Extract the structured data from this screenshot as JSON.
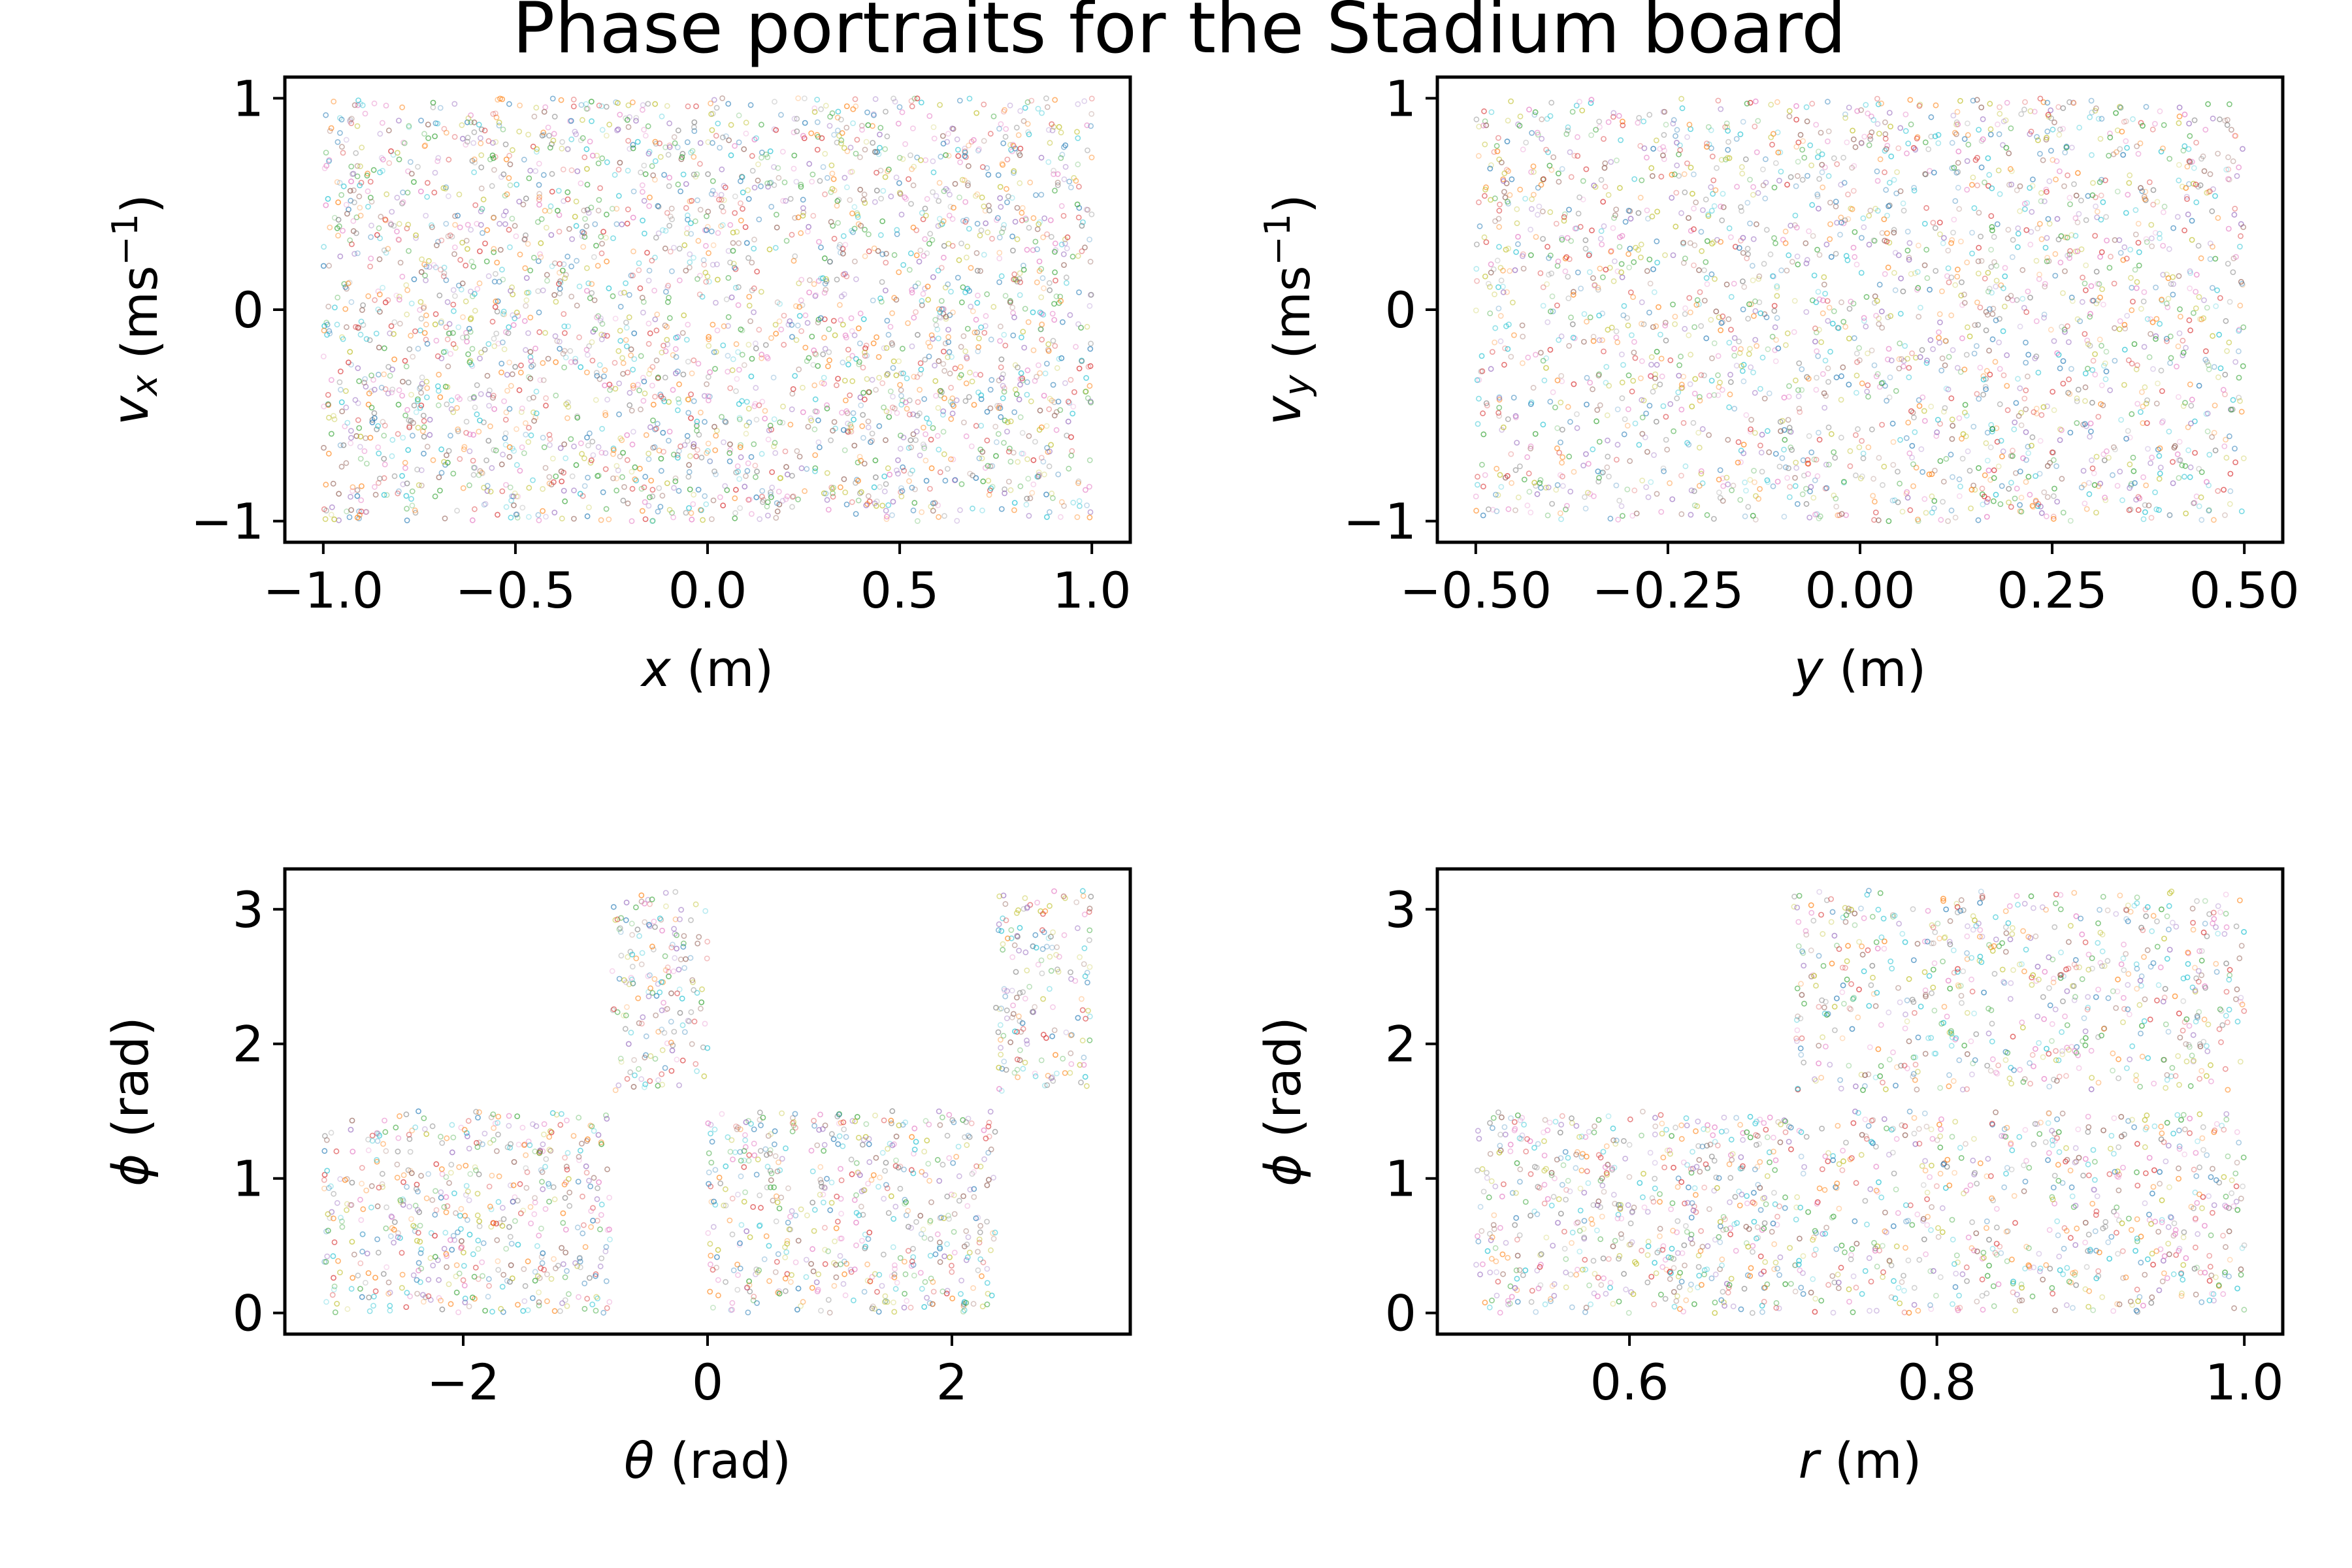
{
  "title": "Phase portraits for the Stadium board",
  "chart_data": [
    {
      "type": "scatter",
      "id": "x-vx",
      "xlabel_main": "x",
      "xlabel_unit": " (m)",
      "ylabel_main": "v",
      "ylabel_sub": "x",
      "ylabel_unit_pre": " (ms",
      "ylabel_sup": "−1",
      "ylabel_unit_post": ")",
      "xlim": [
        -1.1,
        1.1
      ],
      "ylim": [
        -1.1,
        1.1
      ],
      "xticks": [
        -1.0,
        -0.5,
        0.0,
        0.5,
        1.0
      ],
      "xtick_labels": [
        "−1.0",
        "−0.5",
        "0.0",
        "0.5",
        "1.0"
      ],
      "yticks": [
        -1,
        0,
        1
      ],
      "ytick_labels": [
        "−1",
        "0",
        "1"
      ],
      "regions": [
        {
          "x": [
            -1.0,
            1.0
          ],
          "y": [
            -1.0,
            1.0
          ],
          "density": 1.0
        }
      ],
      "gaps": [
        {
          "x": [
            -0.5,
            0.5
          ],
          "y": [
            -0.012,
            0.012
          ]
        }
      ]
    },
    {
      "type": "scatter",
      "id": "y-vy",
      "xlabel_main": "y",
      "xlabel_unit": " (m)",
      "ylabel_main": "v",
      "ylabel_sub": "y",
      "ylabel_unit_pre": " (ms",
      "ylabel_sup": "−1",
      "ylabel_unit_post": ")",
      "xlim": [
        -0.55,
        0.55
      ],
      "ylim": [
        -1.1,
        1.1
      ],
      "xticks": [
        -0.5,
        -0.25,
        0.0,
        0.25,
        0.5
      ],
      "xtick_labels": [
        "−0.50",
        "−0.25",
        "0.00",
        "0.25",
        "0.50"
      ],
      "yticks": [
        -1,
        0,
        1
      ],
      "ytick_labels": [
        "−1",
        "0",
        "1"
      ],
      "regions": [
        {
          "x": [
            -0.5,
            0.5
          ],
          "y": [
            -1.0,
            1.0
          ],
          "density": 0.8
        }
      ],
      "gaps": []
    },
    {
      "type": "scatter",
      "id": "theta-phi",
      "xlabel_main": "θ",
      "xlabel_unit": " (rad)",
      "ylabel_main": "ϕ",
      "ylabel_sub": "",
      "ylabel_unit_pre": " (rad)",
      "ylabel_sup": "",
      "ylabel_unit_post": "",
      "xlim": [
        -3.46,
        3.46
      ],
      "ylim": [
        -0.157,
        3.3
      ],
      "xticks": [
        -2,
        0,
        2
      ],
      "xtick_labels": [
        "−2",
        "0",
        "2"
      ],
      "yticks": [
        0,
        1,
        2,
        3
      ],
      "ytick_labels": [
        "0",
        "1",
        "2",
        "3"
      ],
      "regions": [
        {
          "x": [
            -3.14,
            -0.79
          ],
          "y": [
            0.0,
            1.5
          ],
          "density": 1.0
        },
        {
          "x": [
            0.0,
            2.36
          ],
          "y": [
            0.0,
            1.5
          ],
          "density": 1.0
        },
        {
          "x": [
            -0.79,
            0.0
          ],
          "y": [
            1.65,
            3.14
          ],
          "density": 1.0
        },
        {
          "x": [
            2.36,
            3.14
          ],
          "y": [
            1.65,
            3.14
          ],
          "density": 1.0
        }
      ],
      "gaps": []
    },
    {
      "type": "scatter",
      "id": "r-phi",
      "xlabel_main": "r",
      "xlabel_unit": " (m)",
      "ylabel_main": "ϕ",
      "ylabel_sub": "",
      "ylabel_unit_pre": " (rad)",
      "ylabel_sup": "",
      "ylabel_unit_post": "",
      "xlim": [
        0.475,
        1.025
      ],
      "ylim": [
        -0.157,
        3.3
      ],
      "xticks": [
        0.6,
        0.8,
        1.0
      ],
      "xtick_labels": [
        "0.6",
        "0.8",
        "1.0"
      ],
      "yticks": [
        0,
        1,
        2,
        3
      ],
      "ytick_labels": [
        "0",
        "1",
        "2",
        "3"
      ],
      "regions": [
        {
          "x": [
            0.5,
            0.707
          ],
          "y": [
            0.0,
            1.5
          ],
          "density": 1.0
        },
        {
          "x": [
            0.707,
            1.0
          ],
          "y": [
            0.0,
            1.5
          ],
          "density": 0.8
        },
        {
          "x": [
            0.707,
            1.0
          ],
          "y": [
            1.65,
            3.14
          ],
          "density": 0.8
        }
      ],
      "gaps": []
    }
  ]
}
